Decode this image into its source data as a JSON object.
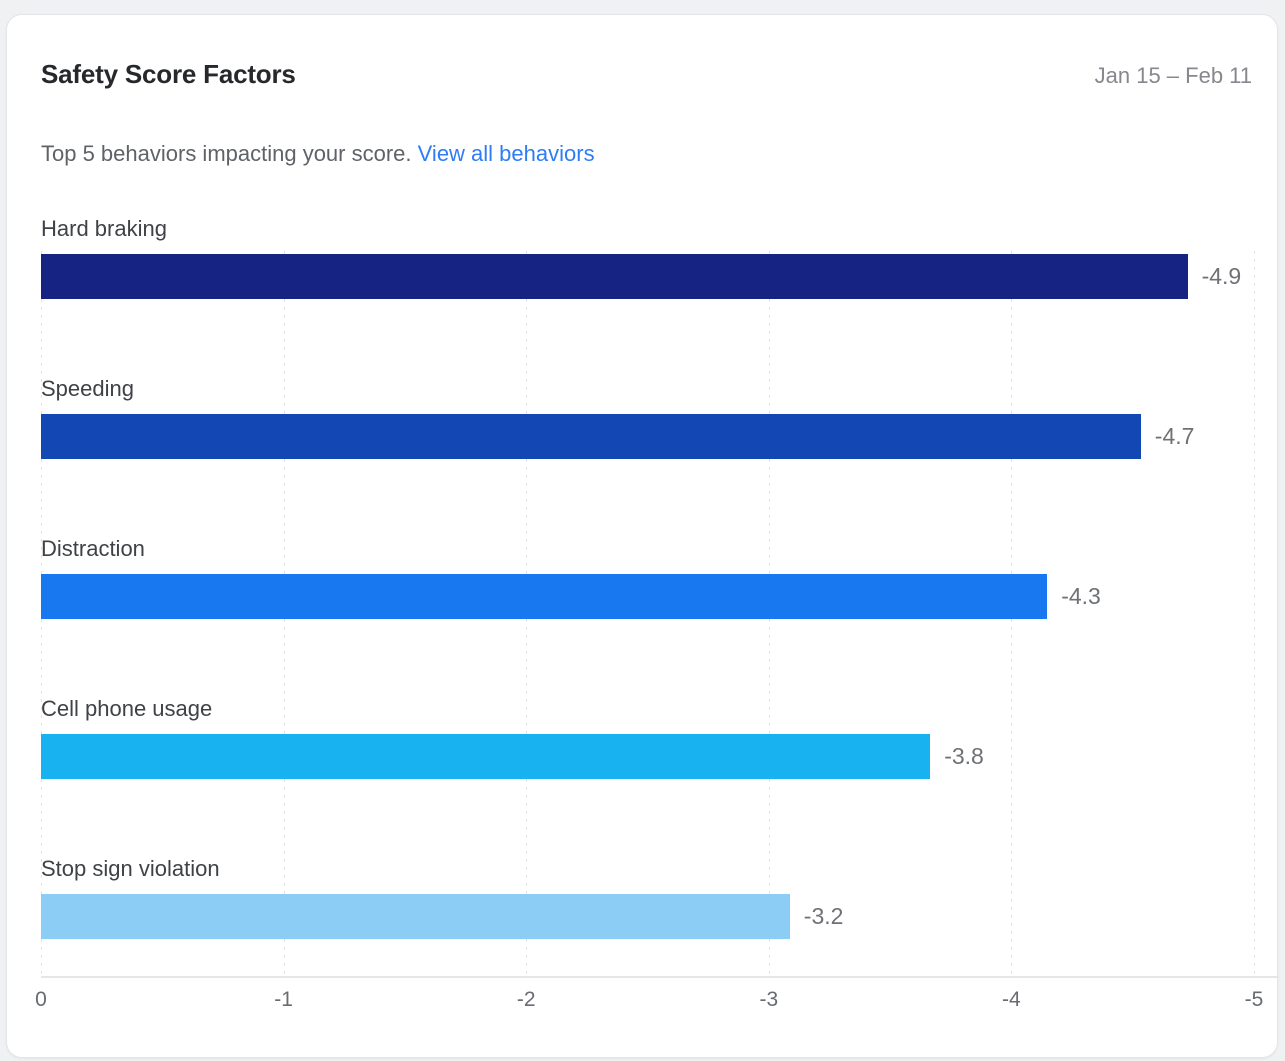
{
  "card": {
    "title": "Safety Score Factors",
    "date_range": "Jan 15 – Feb 11",
    "subtitle": "Top 5 behaviors impacting your score.",
    "link_label": "View all behaviors"
  },
  "colors": {
    "link": "#2e7cf6",
    "card_background": "#ffffff",
    "page_background": "#f0f1f3",
    "axis_line": "#e5e6e9",
    "gridline": "#dfe1e5",
    "label_text": "#3f4246",
    "value_text": "#6e7176",
    "title_text": "#26282c",
    "muted_text": "#86888d"
  },
  "chart_data": {
    "type": "bar",
    "orientation": "horizontal",
    "title": "Safety Score Factors",
    "categories": [
      "Hard braking",
      "Speeding",
      "Distraction",
      "Cell phone usage",
      "Stop sign violation"
    ],
    "values": [
      -4.9,
      -4.7,
      -4.3,
      -3.8,
      -3.2
    ],
    "value_labels": [
      "-4.9",
      "-4.7",
      "-4.3",
      "-3.8",
      "-3.2"
    ],
    "bar_colors": [
      "#172383",
      "#1247b4",
      "#1878f0",
      "#18b2f0",
      "#8bcdf4"
    ],
    "x_ticks": [
      "0",
      "-1",
      "-2",
      "-3",
      "-4",
      "-5"
    ],
    "xlim": [
      0,
      -5
    ],
    "grid": "dotted-vertical",
    "legend": "none",
    "xlabel": "",
    "ylabel": ""
  }
}
